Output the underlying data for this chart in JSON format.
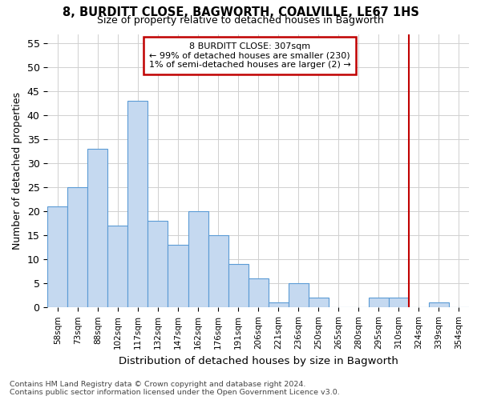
{
  "title": "8, BURDITT CLOSE, BAGWORTH, COALVILLE, LE67 1HS",
  "subtitle": "Size of property relative to detached houses in Bagworth",
  "xlabel": "Distribution of detached houses by size in Bagworth",
  "ylabel": "Number of detached properties",
  "categories": [
    "58sqm",
    "73sqm",
    "88sqm",
    "102sqm",
    "117sqm",
    "132sqm",
    "147sqm",
    "162sqm",
    "176sqm",
    "191sqm",
    "206sqm",
    "221sqm",
    "236sqm",
    "250sqm",
    "265sqm",
    "280sqm",
    "295sqm",
    "310sqm",
    "324sqm",
    "339sqm",
    "354sqm"
  ],
  "values": [
    21,
    25,
    33,
    17,
    43,
    18,
    13,
    20,
    15,
    9,
    6,
    1,
    5,
    2,
    0,
    0,
    2,
    2,
    0,
    1,
    0
  ],
  "bar_color": "#c5d9f0",
  "bar_edge_color": "#5b9bd5",
  "ylim": [
    0,
    57
  ],
  "yticks": [
    0,
    5,
    10,
    15,
    20,
    25,
    30,
    35,
    40,
    45,
    50,
    55
  ],
  "vline_color": "#c00000",
  "annotation_title": "8 BURDITT CLOSE: 307sqm",
  "annotation_line1": "← 99% of detached houses are smaller (230)",
  "annotation_line2": "1% of semi-detached houses are larger (2) →",
  "annotation_box_color": "#c00000",
  "footer_line1": "Contains HM Land Registry data © Crown copyright and database right 2024.",
  "footer_line2": "Contains public sector information licensed under the Open Government Licence v3.0.",
  "bg_color": "#ffffff",
  "grid_color": "#d0d0d0"
}
